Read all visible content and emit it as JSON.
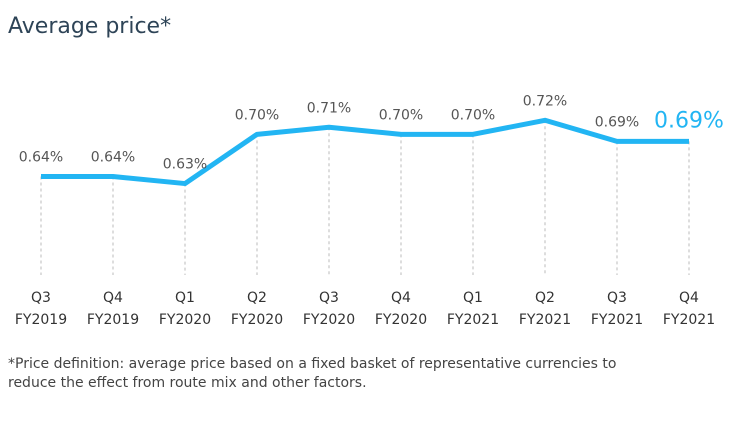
{
  "chart_data": {
    "type": "line",
    "title": "Average price*",
    "categories": [
      [
        "Q3",
        "FY2019"
      ],
      [
        "Q4",
        "FY2019"
      ],
      [
        "Q1",
        "FY2020"
      ],
      [
        "Q2",
        "FY2020"
      ],
      [
        "Q3",
        "FY2020"
      ],
      [
        "Q4",
        "FY2020"
      ],
      [
        "Q1",
        "FY2021"
      ],
      [
        "Q2",
        "FY2021"
      ],
      [
        "Q3",
        "FY2021"
      ],
      [
        "Q4",
        "FY2021"
      ]
    ],
    "values": [
      0.64,
      0.64,
      0.63,
      0.7,
      0.71,
      0.7,
      0.7,
      0.72,
      0.69,
      0.69
    ],
    "value_labels": [
      "0.64%",
      "0.64%",
      "0.63%",
      "0.70%",
      "0.71%",
      "0.70%",
      "0.70%",
      "0.72%",
      "0.69%",
      "0.69%"
    ],
    "color": "#22b5f3",
    "ylim": [
      0.5,
      0.8
    ],
    "footnote": [
      "*Price definition: average price based on a fixed basket of representative currencies to",
      "reduce the effect from route mix and other factors."
    ]
  }
}
